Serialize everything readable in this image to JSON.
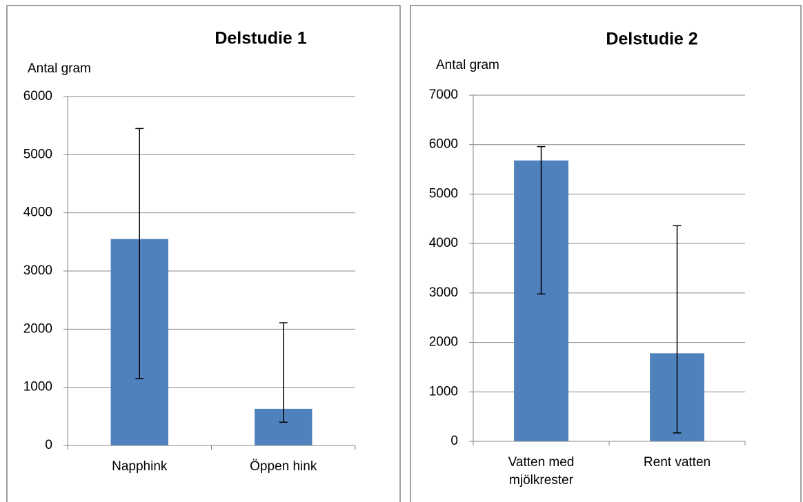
{
  "chart_data": [
    {
      "type": "bar",
      "title": "Delstudie 1",
      "ylabel": "Antal gram",
      "categories": [
        "Napphink",
        "Öppen hink"
      ],
      "values": [
        3550,
        630
      ],
      "error_minus": [
        2400,
        230
      ],
      "error_plus": [
        1900,
        1480
      ],
      "color": "#4f81bd",
      "ylim": [
        0,
        6000
      ],
      "yticks": [
        0,
        1000,
        2000,
        3000,
        4000,
        5000,
        6000
      ],
      "grid": true
    },
    {
      "type": "bar",
      "title": "Delstudie 2",
      "ylabel": "Antal gram",
      "categories": [
        "Vatten med mjölkrester",
        "Rent vatten"
      ],
      "values": [
        5680,
        1780
      ],
      "error_minus": [
        2700,
        1610
      ],
      "error_plus": [
        280,
        2580
      ],
      "color": "#4f81bd",
      "ylim": [
        0,
        7000
      ],
      "yticks": [
        0,
        1000,
        2000,
        3000,
        4000,
        5000,
        6000,
        7000
      ],
      "grid": true
    }
  ]
}
